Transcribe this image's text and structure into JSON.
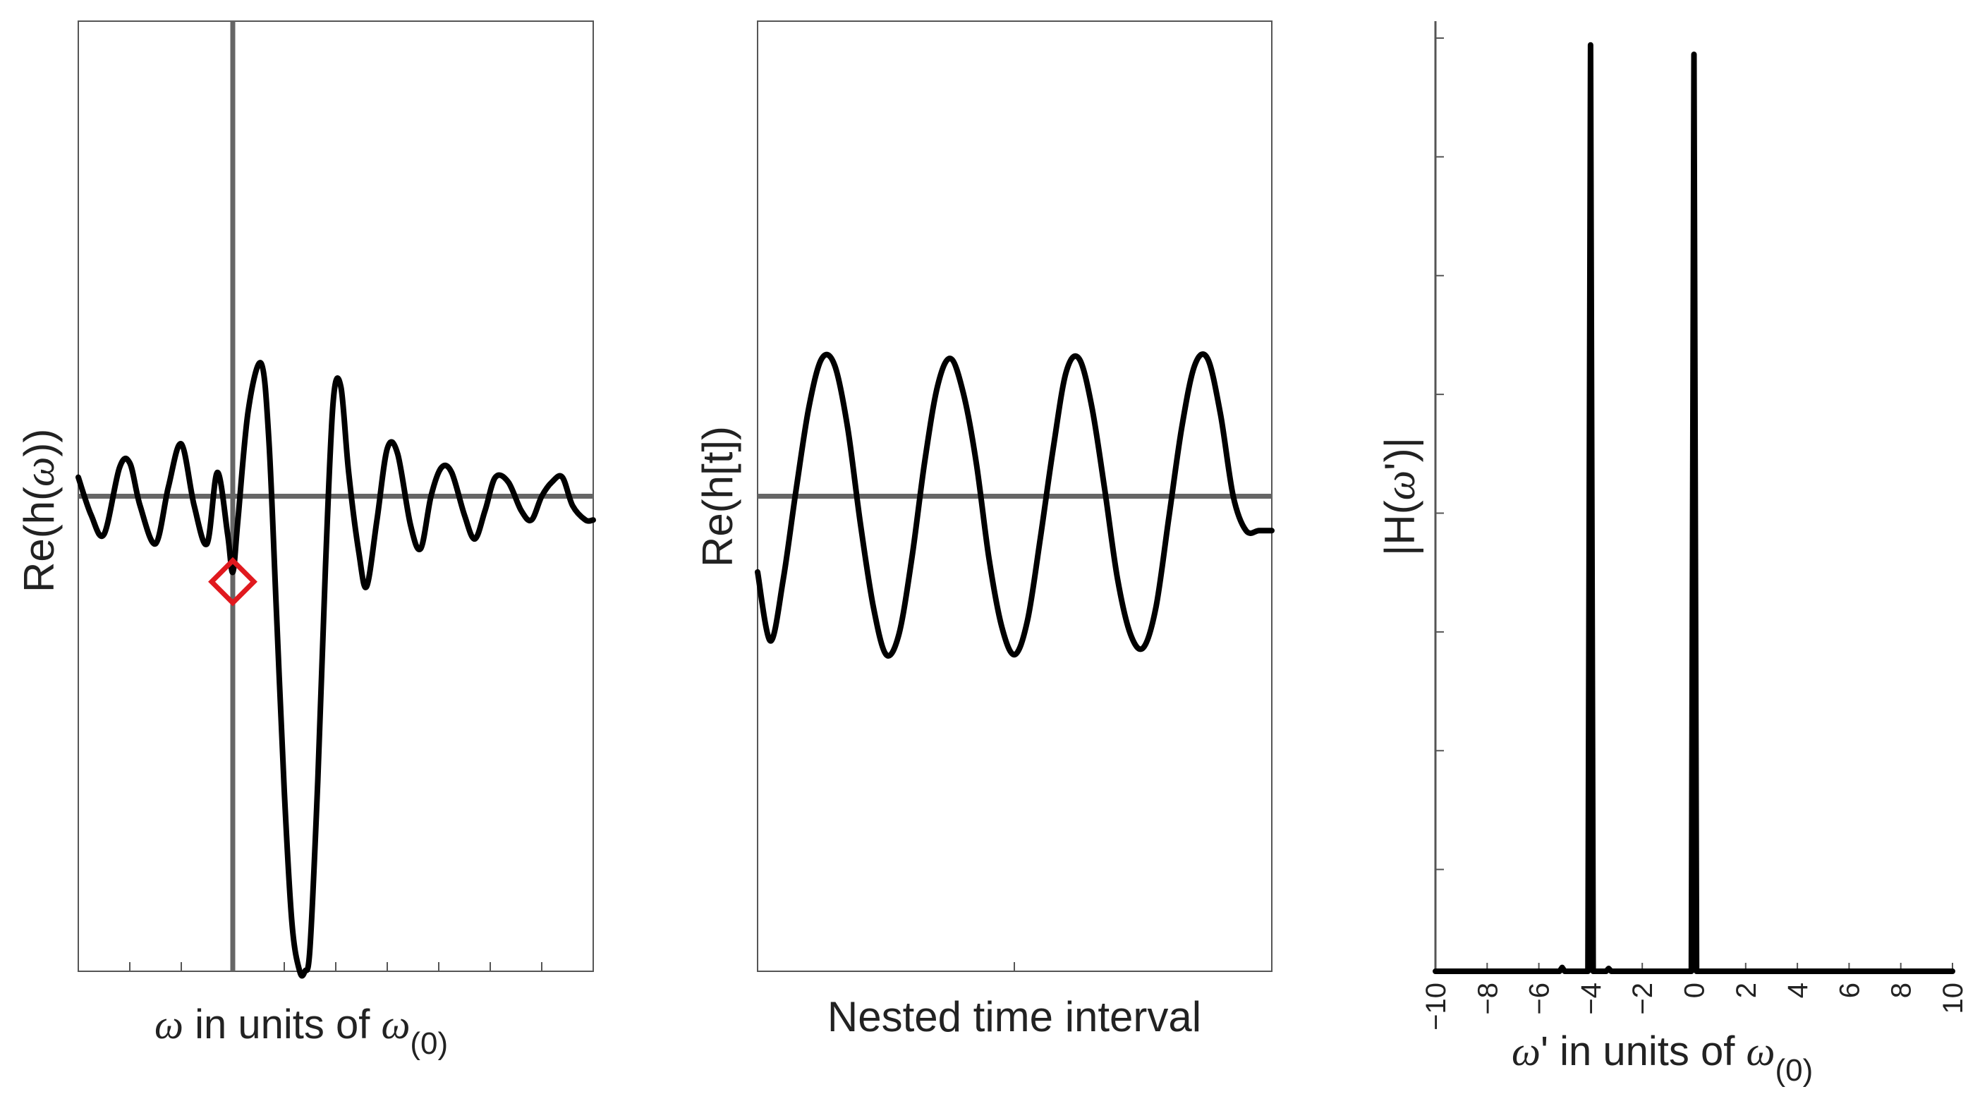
{
  "chart_data": [
    {
      "type": "line",
      "xlabel_parts": {
        "symbol": "ω",
        "middle": " in units of ",
        "symbol2": "ω",
        "sub": "(0)"
      },
      "ylabel_parts": {
        "pre": "Re(h(",
        "symbol": "ω",
        "post": "))"
      },
      "xlim": [
        -3,
        7
      ],
      "ylim": [
        -1.0,
        1.0
      ],
      "grid": false,
      "baseline_y": 0,
      "vertical_line_x": 0,
      "marker": {
        "x": 0,
        "y": -0.18,
        "shape": "diamond",
        "color": "#e0191e"
      },
      "series": [
        {
          "x": [
            -3,
            -2.75,
            -2.5,
            -2.2,
            -2,
            -1.8,
            -1.5,
            -1.25,
            -1,
            -0.75,
            -0.5,
            -0.3,
            -0.1,
            0,
            0.1,
            0.3,
            0.55,
            0.7,
            0.85,
            1,
            1.15,
            1.3,
            1.4,
            1.5,
            1.65,
            1.8,
            1.95,
            2.1,
            2.25,
            2.45,
            2.6,
            2.8,
            3,
            3.2,
            3.45,
            3.65,
            3.85,
            4.05,
            4.25,
            4.5,
            4.7,
            4.9,
            5.1,
            5.35,
            5.6,
            5.8,
            6.0,
            6.2,
            6.4,
            6.6,
            6.85,
            7
          ],
          "y": [
            0.04,
            -0.04,
            -0.08,
            0.06,
            0.07,
            -0.02,
            -0.1,
            0.02,
            0.11,
            -0.02,
            -0.1,
            0.05,
            -0.08,
            -0.16,
            -0.05,
            0.18,
            0.28,
            0.12,
            -0.25,
            -0.62,
            -0.9,
            -1.0,
            -1.0,
            -0.95,
            -0.6,
            -0.15,
            0.2,
            0.23,
            0.05,
            -0.12,
            -0.19,
            -0.05,
            0.1,
            0.09,
            -0.06,
            -0.11,
            0.0,
            0.06,
            0.05,
            -0.04,
            -0.09,
            -0.03,
            0.04,
            0.03,
            -0.03,
            -0.05,
            0.0,
            0.03,
            0.04,
            -0.02,
            -0.05,
            -0.05
          ]
        }
      ]
    },
    {
      "type": "line",
      "xlabel": "Nested time interval",
      "ylabel": "Re(h[t])",
      "xlim": [
        0,
        4
      ],
      "ylim": [
        -1.0,
        1.0
      ],
      "grid": false,
      "baseline_y": 0,
      "series": [
        {
          "x": [
            0.0,
            0.1,
            0.2,
            0.3,
            0.4,
            0.5,
            0.6,
            0.7,
            0.8,
            0.9,
            1.0,
            1.1,
            1.2,
            1.3,
            1.4,
            1.5,
            1.6,
            1.7,
            1.8,
            1.9,
            2.0,
            2.1,
            2.2,
            2.3,
            2.4,
            2.5,
            2.6,
            2.7,
            2.8,
            2.9,
            3.0,
            3.1,
            3.2,
            3.3,
            3.4,
            3.5,
            3.6,
            3.7,
            3.8,
            3.9,
            4.0
          ],
          "y": [
            -0.11,
            -0.21,
            -0.12,
            0.01,
            0.13,
            0.2,
            0.19,
            0.1,
            -0.04,
            -0.16,
            -0.23,
            -0.2,
            -0.09,
            0.05,
            0.16,
            0.2,
            0.15,
            0.05,
            -0.09,
            -0.19,
            -0.23,
            -0.18,
            -0.06,
            0.07,
            0.18,
            0.2,
            0.13,
            0.01,
            -0.12,
            -0.2,
            -0.22,
            -0.16,
            -0.03,
            0.1,
            0.19,
            0.2,
            0.12,
            0.0,
            -0.05,
            -0.05,
            -0.05
          ]
        }
      ]
    },
    {
      "type": "line",
      "xlabel_parts": {
        "symbol": "ω",
        "middle": "' in units of ",
        "symbol2": "ω",
        "sub": "(0)"
      },
      "ylabel_parts": {
        "pre": "|H(",
        "symbol": "ω",
        "post": "')|"
      },
      "xlim": [
        -10,
        10
      ],
      "ylim": [
        0,
        1
      ],
      "xticks": [
        -10,
        -8,
        -6,
        -4,
        -2,
        0,
        2,
        4,
        6,
        8,
        10
      ],
      "xtick_labels": [
        "−10",
        "−8",
        "−6",
        "−4",
        "−2",
        "0",
        "2",
        "4",
        "6",
        "8",
        "10"
      ],
      "grid": false,
      "series": [
        {
          "x": [
            -10,
            -6,
            -5.2,
            -5.1,
            -5.0,
            -4.2,
            -4.1,
            -4.05,
            -4.0,
            -3.95,
            -3.9,
            -3.4,
            -3.3,
            -3.2,
            -2,
            -0.2,
            -0.1,
            -0.05,
            0.0,
            0.05,
            0.1,
            0.2,
            10
          ],
          "y": [
            0.0,
            0.0,
            0.0,
            0.004,
            0.0,
            0.0,
            0.0,
            0.5,
            0.975,
            0.5,
            0.0,
            0.0,
            0.003,
            0.0,
            0.0,
            0.0,
            0.0,
            0.5,
            0.965,
            0.5,
            0.0,
            0.0,
            0.0
          ]
        }
      ]
    }
  ]
}
